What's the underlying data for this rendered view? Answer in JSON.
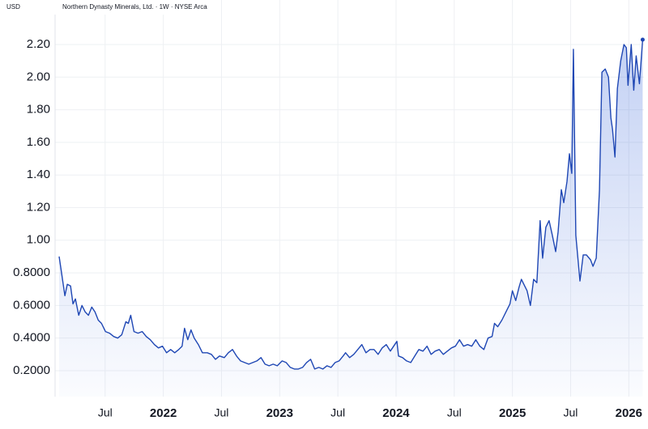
{
  "chart_data": {
    "type": "line",
    "title": "Northern Dynasty Minerals, Ltd. · 1W · NYSE Arca",
    "currency": "USD",
    "color": "#1f47b4",
    "grid": true,
    "xlim": [
      2021.07,
      2026.13
    ],
    "ylim": [
      0.041,
      2.473
    ],
    "xticks": [
      {
        "value": 2021.5,
        "label": "Jul"
      },
      2022,
      {
        "value": 2022.5,
        "label": "Jul"
      },
      2023,
      {
        "value": 2023.5,
        "label": "Jul"
      },
      2024,
      {
        "value": 2024.5,
        "label": "Jul"
      },
      2025,
      {
        "value": 2025.5,
        "label": "Jul"
      },
      2026
    ],
    "yticks": [
      {
        "value": 0.2,
        "label": "0.2000"
      },
      {
        "value": 0.4,
        "label": "0.4000"
      },
      {
        "value": 0.6,
        "label": "0.6000"
      },
      {
        "value": 0.8,
        "label": "0.8000"
      },
      {
        "value": 1,
        "label": "1.00"
      },
      {
        "value": 1.2,
        "label": "1.20"
      },
      {
        "value": 1.4,
        "label": "1.40"
      },
      {
        "value": 1.6,
        "label": "1.60"
      },
      {
        "value": 1.8,
        "label": "1.80"
      },
      {
        "value": 2,
        "label": "2.00"
      },
      {
        "value": 2.2,
        "label": "2.20"
      }
    ],
    "x": [
      2021.105,
      2021.126,
      2021.154,
      2021.175,
      2021.203,
      2021.224,
      2021.245,
      2021.273,
      2021.301,
      2021.329,
      2021.357,
      2021.385,
      2021.413,
      2021.441,
      2021.469,
      2021.503,
      2021.538,
      2021.573,
      2021.608,
      2021.643,
      2021.678,
      2021.699,
      2021.72,
      2021.748,
      2021.783,
      2021.818,
      2021.853,
      2021.888,
      2021.923,
      2021.958,
      2021.993,
      2022.028,
      2022.063,
      2022.098,
      2022.133,
      2022.161,
      2022.182,
      2022.21,
      2022.238,
      2022.266,
      2022.301,
      2022.336,
      2022.378,
      2022.413,
      2022.448,
      2022.483,
      2022.524,
      2022.559,
      2022.594,
      2022.629,
      2022.664,
      2022.699,
      2022.734,
      2022.769,
      2022.804,
      2022.839,
      2022.874,
      2022.909,
      2022.944,
      2022.979,
      2023.021,
      2023.056,
      2023.091,
      2023.126,
      2023.161,
      2023.196,
      2023.231,
      2023.266,
      2023.301,
      2023.336,
      2023.371,
      2023.406,
      2023.441,
      2023.476,
      2023.51,
      2023.545,
      2023.566,
      2023.601,
      2023.636,
      2023.671,
      2023.706,
      2023.741,
      2023.776,
      2023.811,
      2023.846,
      2023.881,
      2023.916,
      2023.951,
      2023.979,
      2024.007,
      2024.021,
      2024.056,
      2024.091,
      2024.126,
      2024.161,
      2024.196,
      2024.231,
      2024.266,
      2024.301,
      2024.336,
      2024.371,
      2024.406,
      2024.441,
      2024.476,
      2024.51,
      2024.545,
      2024.58,
      2024.615,
      2024.65,
      2024.685,
      2024.72,
      2024.755,
      2024.79,
      2024.825,
      2024.846,
      2024.874,
      2024.909,
      2024.944,
      2024.979,
      2025.0,
      2025.028,
      2025.056,
      2025.077,
      2025.105,
      2025.126,
      2025.154,
      2025.182,
      2025.21,
      2025.238,
      2025.259,
      2025.287,
      2025.315,
      2025.343,
      2025.371,
      2025.392,
      2025.42,
      2025.441,
      2025.469,
      2025.49,
      2025.51,
      2025.524,
      2025.545,
      2025.58,
      2025.608,
      2025.636,
      2025.671,
      2025.692,
      2025.72,
      2025.748,
      2025.769,
      2025.797,
      2025.825,
      2025.846,
      2025.86,
      2025.881,
      2025.902,
      2025.93,
      2025.958,
      2025.979,
      2025.993,
      2026.021,
      2026.042,
      2026.063,
      2026.091,
      2026.119
    ],
    "values": [
      0.9,
      0.8,
      0.66,
      0.73,
      0.72,
      0.61,
      0.64,
      0.54,
      0.6,
      0.56,
      0.54,
      0.59,
      0.56,
      0.51,
      0.49,
      0.44,
      0.43,
      0.41,
      0.4,
      0.42,
      0.5,
      0.49,
      0.54,
      0.44,
      0.43,
      0.44,
      0.41,
      0.39,
      0.36,
      0.34,
      0.35,
      0.31,
      0.33,
      0.31,
      0.33,
      0.35,
      0.46,
      0.39,
      0.45,
      0.4,
      0.36,
      0.31,
      0.31,
      0.3,
      0.27,
      0.29,
      0.28,
      0.31,
      0.33,
      0.29,
      0.26,
      0.25,
      0.24,
      0.25,
      0.26,
      0.28,
      0.24,
      0.23,
      0.24,
      0.23,
      0.26,
      0.25,
      0.22,
      0.21,
      0.21,
      0.22,
      0.25,
      0.27,
      0.21,
      0.22,
      0.21,
      0.23,
      0.22,
      0.25,
      0.26,
      0.29,
      0.31,
      0.28,
      0.3,
      0.33,
      0.36,
      0.31,
      0.33,
      0.33,
      0.3,
      0.34,
      0.36,
      0.32,
      0.35,
      0.38,
      0.29,
      0.28,
      0.26,
      0.25,
      0.29,
      0.33,
      0.32,
      0.35,
      0.3,
      0.32,
      0.33,
      0.3,
      0.32,
      0.34,
      0.35,
      0.39,
      0.35,
      0.36,
      0.35,
      0.39,
      0.35,
      0.33,
      0.4,
      0.41,
      0.49,
      0.47,
      0.51,
      0.56,
      0.61,
      0.69,
      0.63,
      0.71,
      0.76,
      0.72,
      0.69,
      0.6,
      0.76,
      0.74,
      1.12,
      0.89,
      1.08,
      1.12,
      1.03,
      0.93,
      1.05,
      1.31,
      1.23,
      1.36,
      1.53,
      1.41,
      2.17,
      1.03,
      0.75,
      0.91,
      0.91,
      0.88,
      0.84,
      0.89,
      1.31,
      2.03,
      2.05,
      2.0,
      1.75,
      1.68,
      1.51,
      1.93,
      2.1,
      2.2,
      2.18,
      1.95,
      2.2,
      1.92,
      2.13,
      1.96,
      2.23
    ]
  }
}
